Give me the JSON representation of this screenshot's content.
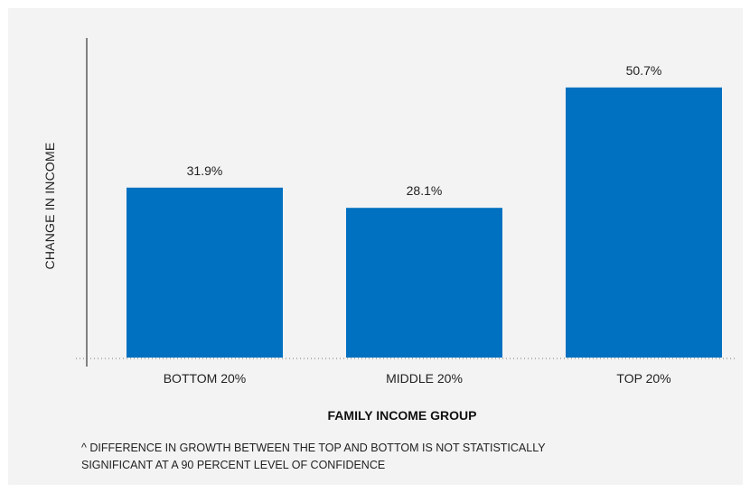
{
  "chart_data": {
    "type": "bar",
    "categories": [
      "BOTTOM 20%",
      "MIDDLE 20%",
      "TOP 20%"
    ],
    "values": [
      31.9,
      28.1,
      50.7
    ],
    "value_labels": [
      "31.9%",
      "28.1%",
      "50.7%"
    ],
    "xlabel": "FAMILY INCOME GROUP",
    "ylabel": "CHANGE IN INCOME",
    "ylim": [
      0,
      60
    ],
    "bar_color": "#0070c0",
    "grid": false
  },
  "footnote": {
    "line1": "^ DIFFERENCE IN GROWTH BETWEEN THE TOP AND BOTTOM IS NOT STATISTICALLY",
    "line2": "SIGNIFICANT AT A 90 PERCENT LEVEL OF CONFIDENCE"
  }
}
